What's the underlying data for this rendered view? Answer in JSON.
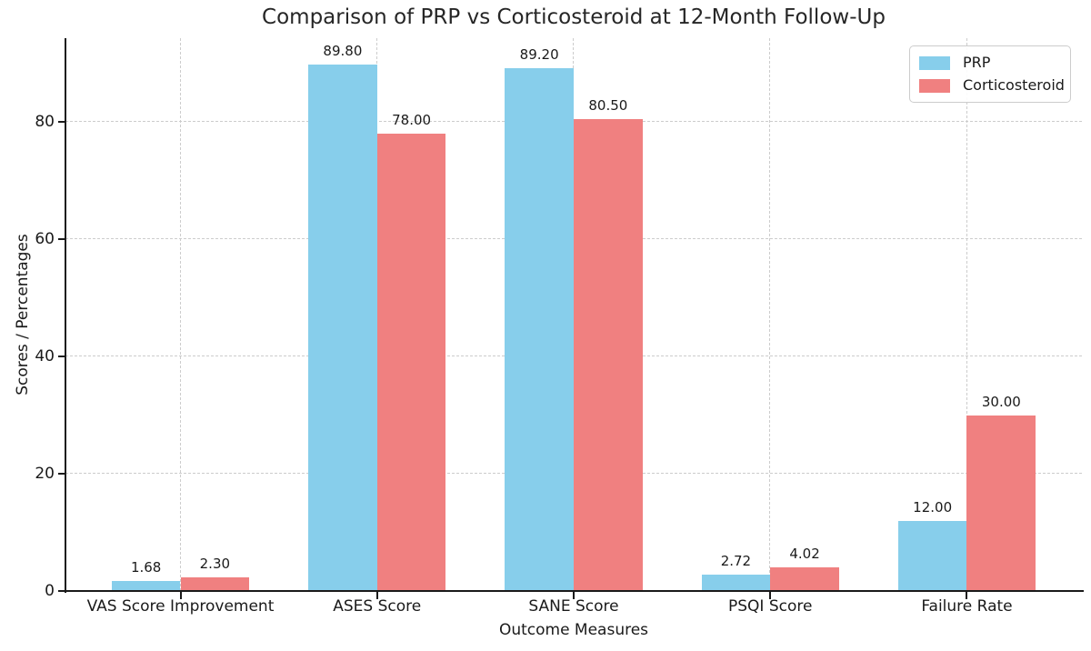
{
  "chart_data": {
    "type": "bar",
    "title": "Comparison of PRP vs Corticosteroid at 12-Month Follow-Up",
    "xlabel": "Outcome Measures",
    "ylabel": "Scores / Percentages",
    "categories": [
      "VAS Score Improvement",
      "ASES Score",
      "SANE Score",
      "PSQI Score",
      "Failure Rate"
    ],
    "series": [
      {
        "name": "PRP",
        "color": "#87CEEB",
        "values": [
          1.68,
          89.8,
          89.2,
          2.72,
          12.0
        ]
      },
      {
        "name": "Corticosteroid",
        "color": "#F08080",
        "values": [
          2.3,
          78.0,
          80.5,
          4.02,
          30.0
        ]
      }
    ],
    "value_labels": [
      [
        "1.68",
        "89.80",
        "89.20",
        "2.72",
        "12.00"
      ],
      [
        "2.30",
        "78.00",
        "80.50",
        "4.02",
        "30.00"
      ]
    ],
    "yticks": [
      "0",
      "20",
      "40",
      "60",
      "80"
    ],
    "ylim": [
      0,
      94.3
    ],
    "bar_width_frac": 0.35,
    "grid": "dashed, horizontal at yticks and vertical at category centers",
    "legend_position": "upper right"
  }
}
